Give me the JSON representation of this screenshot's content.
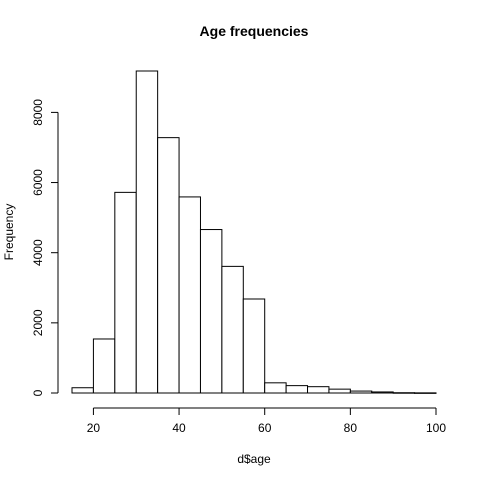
{
  "chart_data": {
    "type": "bar",
    "title": "Age frequencies",
    "xlabel": "d$age",
    "ylabel": "Frequency",
    "bin_edges": [
      15,
      20,
      25,
      30,
      35,
      40,
      45,
      50,
      55,
      60,
      65,
      70,
      75,
      80,
      85,
      90,
      95,
      100
    ],
    "values": [
      150,
      1540,
      5720,
      9180,
      7280,
      5590,
      4660,
      3610,
      2680,
      290,
      210,
      180,
      110,
      55,
      30,
      8,
      4
    ],
    "xlim": [
      15,
      100
    ],
    "ylim": [
      0,
      9180
    ],
    "x_ticks": [
      20,
      40,
      60,
      80,
      100
    ],
    "y_ticks": [
      0,
      2000,
      4000,
      6000,
      8000
    ],
    "grid": false,
    "legend": "none"
  }
}
